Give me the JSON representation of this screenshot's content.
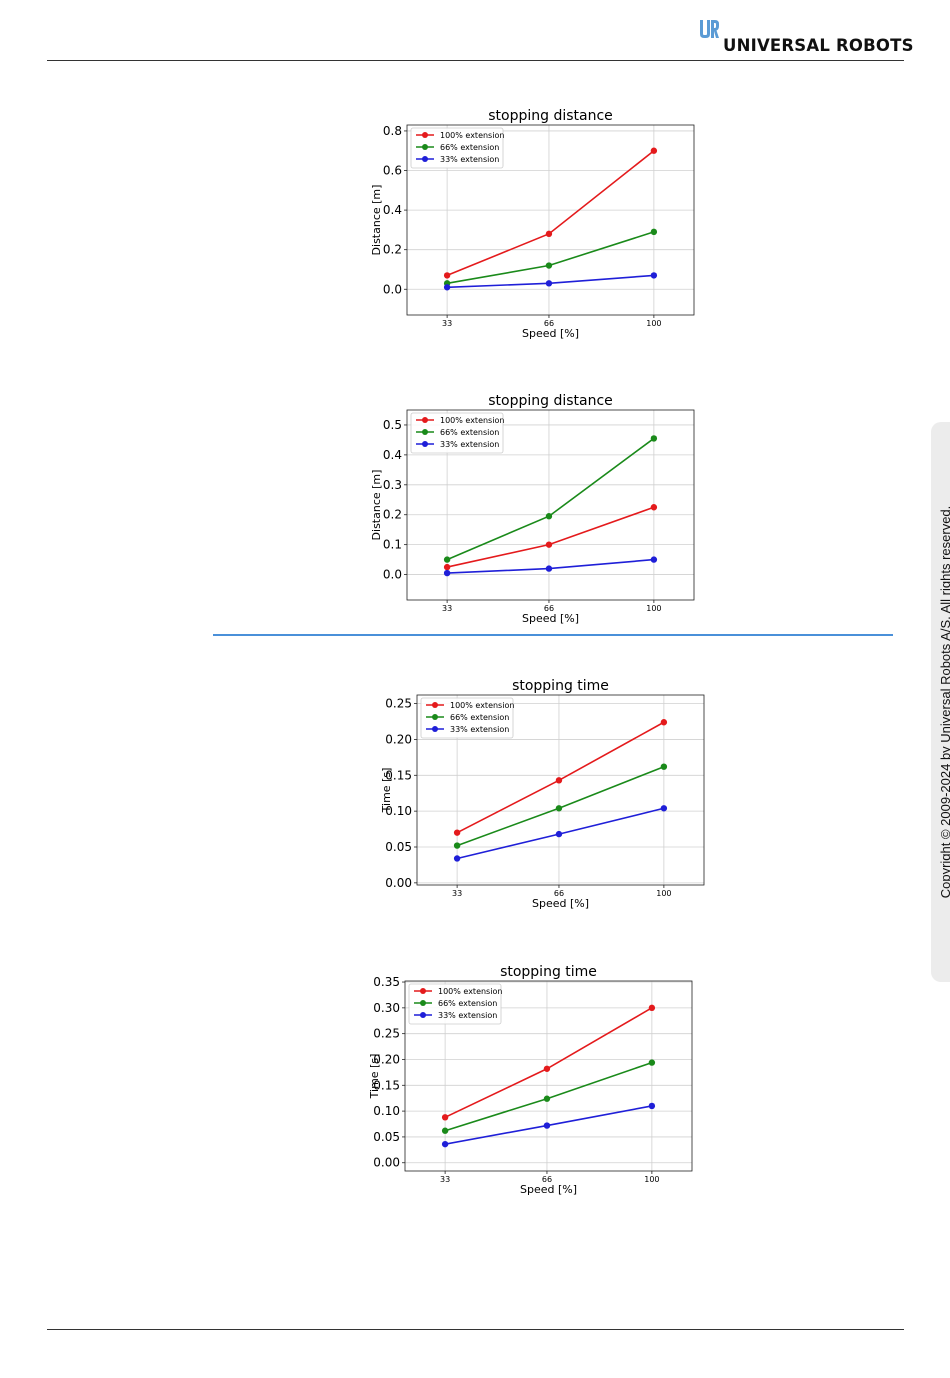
{
  "header": {
    "brand": "UNIVERSAL ROBOTS",
    "logo_icon": "ur-logo-icon",
    "brand_color": "#5b9bd5"
  },
  "sidebar": {
    "copyright": "Copyright © 2009-2024 by Universal Robots A/S. All rights reserved."
  },
  "chart_data": [
    {
      "type": "line",
      "title": "stopping distance",
      "xlabel": "Speed [%]",
      "ylabel": "Distance [m]",
      "x": [
        33,
        66,
        100
      ],
      "xlim": [
        20,
        113
      ],
      "ylim": [
        -0.13,
        0.83
      ],
      "yticks": [
        0.0,
        0.2,
        0.4,
        0.6,
        0.8
      ],
      "ytick_labels": [
        "0.0",
        "0.2",
        "0.4",
        "0.6",
        "0.8"
      ],
      "grid": true,
      "legend": "top-left",
      "series": [
        {
          "name": "100% extension",
          "color": "#e41a1c",
          "values": [
            0.07,
            0.28,
            0.7
          ]
        },
        {
          "name": "66% extension",
          "color": "#1a8a1a",
          "values": [
            0.03,
            0.12,
            0.29
          ]
        },
        {
          "name": "33% extension",
          "color": "#1f1fd8",
          "values": [
            0.01,
            0.03,
            0.07
          ]
        }
      ]
    },
    {
      "type": "line",
      "title": "stopping distance",
      "xlabel": "Speed [%]",
      "ylabel": "Distance [m]",
      "x": [
        33,
        66,
        100
      ],
      "xlim": [
        20,
        113
      ],
      "ylim": [
        -0.085,
        0.55
      ],
      "yticks": [
        0.0,
        0.1,
        0.2,
        0.3,
        0.4,
        0.5
      ],
      "ytick_labels": [
        "0.0",
        "0.1",
        "0.2",
        "0.3",
        "0.4",
        "0.5"
      ],
      "grid": true,
      "legend": "top-left",
      "series": [
        {
          "name": "100% extension",
          "color": "#e41a1c",
          "values": [
            0.025,
            0.1,
            0.225
          ]
        },
        {
          "name": "66% extension",
          "color": "#1a8a1a",
          "values": [
            0.05,
            0.195,
            0.455
          ]
        },
        {
          "name": "33% extension",
          "color": "#1f1fd8",
          "values": [
            0.005,
            0.02,
            0.05
          ]
        }
      ]
    },
    {
      "type": "line",
      "title": "stopping time",
      "xlabel": "Speed [%]",
      "ylabel": "Time [s]",
      "x": [
        33,
        66,
        100
      ],
      "xlim": [
        20,
        113
      ],
      "ylim": [
        -0.003,
        0.262
      ],
      "yticks": [
        0.0,
        0.05,
        0.1,
        0.15,
        0.2,
        0.25
      ],
      "ytick_labels": [
        "0.00",
        "0.05",
        "0.10",
        "0.15",
        "0.20",
        "0.25"
      ],
      "grid": true,
      "legend": "top-left",
      "series": [
        {
          "name": "100% extension",
          "color": "#e41a1c",
          "values": [
            0.07,
            0.143,
            0.224
          ]
        },
        {
          "name": "66% extension",
          "color": "#1a8a1a",
          "values": [
            0.052,
            0.104,
            0.162
          ]
        },
        {
          "name": "33% extension",
          "color": "#1f1fd8",
          "values": [
            0.034,
            0.068,
            0.104
          ]
        }
      ]
    },
    {
      "type": "line",
      "title": "stopping time",
      "xlabel": "Speed [%]",
      "ylabel": "Time [s]",
      "x": [
        33,
        66,
        100
      ],
      "xlim": [
        20,
        113
      ],
      "ylim": [
        -0.016,
        0.352
      ],
      "yticks": [
        0.0,
        0.05,
        0.1,
        0.15,
        0.2,
        0.25,
        0.3,
        0.35
      ],
      "ytick_labels": [
        "0.00",
        "0.05",
        "0.10",
        "0.15",
        "0.20",
        "0.25",
        "0.30",
        "0.35"
      ],
      "grid": true,
      "legend": "top-left",
      "series": [
        {
          "name": "100% extension",
          "color": "#e41a1c",
          "values": [
            0.088,
            0.182,
            0.3
          ]
        },
        {
          "name": "66% extension",
          "color": "#1a8a1a",
          "values": [
            0.062,
            0.124,
            0.194
          ]
        },
        {
          "name": "33% extension",
          "color": "#1f1fd8",
          "values": [
            0.036,
            0.072,
            0.11
          ]
        }
      ]
    }
  ]
}
